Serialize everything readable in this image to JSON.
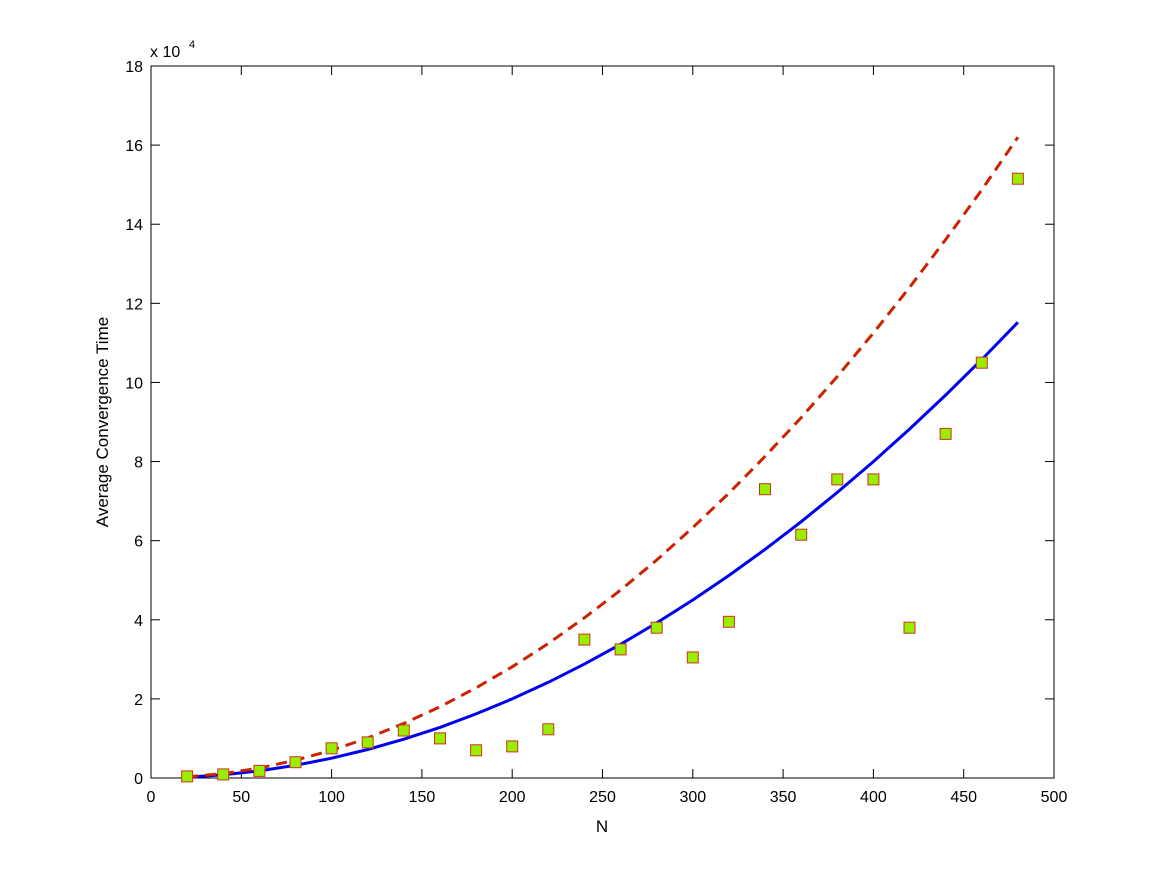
{
  "chart_data": {
    "type": "scatter",
    "title": "",
    "xlabel": "N",
    "ylabel": "Average Convergence Time",
    "y_exponent_prefix": "x 10",
    "y_exponent_power": "4",
    "xlim": [
      0,
      500
    ],
    "ylim": [
      0,
      180000
    ],
    "xticks": [
      0,
      50,
      100,
      150,
      200,
      250,
      300,
      350,
      400,
      450,
      500
    ],
    "yticks": [
      0,
      20000,
      40000,
      60000,
      80000,
      100000,
      120000,
      140000,
      160000,
      180000
    ],
    "ytick_labels": [
      "0",
      "2",
      "4",
      "6",
      "8",
      "10",
      "12",
      "14",
      "16",
      "18"
    ],
    "grid": false,
    "legend": "none",
    "colors": {
      "marker_fill": "#99ee00",
      "marker_edge": "#cc3322",
      "solid_line": "#0000ee",
      "dashed_line": "#cc2200"
    },
    "series": [
      {
        "style": "markers",
        "x": [
          20,
          40,
          60,
          80,
          100,
          120,
          140,
          160,
          180,
          200,
          220,
          240,
          260,
          280,
          300,
          320,
          340,
          360,
          380,
          400,
          420,
          440,
          460,
          480
        ],
        "y": [
          400,
          900,
          1800,
          4000,
          7500,
          9000,
          12000,
          10000,
          7000,
          8000,
          12300,
          35000,
          32500,
          38000,
          30500,
          39500,
          73000,
          61500,
          75500,
          75500,
          38000,
          87000,
          105000,
          151500
        ]
      },
      {
        "style": "solid-line",
        "x": [
          20,
          40,
          60,
          80,
          100,
          120,
          140,
          160,
          180,
          200,
          220,
          240,
          260,
          280,
          300,
          320,
          340,
          360,
          380,
          400,
          420,
          440,
          460,
          480
        ],
        "y": [
          200,
          800,
          1800,
          3200,
          5000,
          7200,
          9800,
          12800,
          16200,
          20000,
          24200,
          28800,
          33800,
          39200,
          45000,
          51200,
          57800,
          64800,
          72200,
          80000,
          88200,
          96800,
          105800,
          115200
        ]
      },
      {
        "style": "dashed-line",
        "x": [
          20,
          40,
          60,
          80,
          100,
          120,
          140,
          160,
          180,
          200,
          220,
          240,
          260,
          280,
          300,
          320,
          340,
          360,
          380,
          400,
          420,
          440,
          460,
          480
        ],
        "y": [
          280,
          1100,
          2500,
          4500,
          7000,
          10100,
          13800,
          18000,
          22800,
          28100,
          34000,
          40500,
          47500,
          55100,
          63300,
          72000,
          81300,
          91100,
          101500,
          112500,
          124000,
          136100,
          148700,
          162000
        ]
      }
    ]
  }
}
